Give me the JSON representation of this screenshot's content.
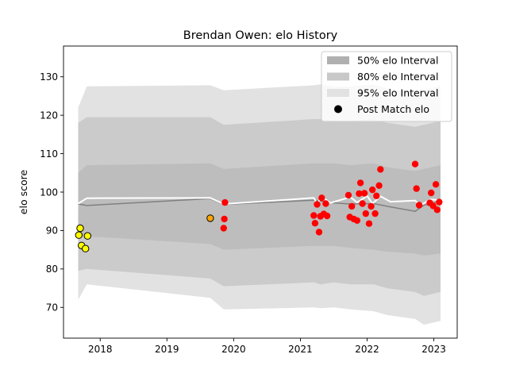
{
  "chart_data": {
    "type": "area",
    "title": "Brendan Owen: elo History",
    "xlabel": "",
    "ylabel": "elo score",
    "xlim": [
      2017.45,
      2023.35
    ],
    "ylim": [
      62,
      138
    ],
    "xticks": [
      {
        "value": 2018,
        "label": "2018"
      },
      {
        "value": 2019,
        "label": "2019"
      },
      {
        "value": 2020,
        "label": "2020"
      },
      {
        "value": 2021,
        "label": "2021"
      },
      {
        "value": 2022,
        "label": "2022"
      },
      {
        "value": 2023,
        "label": "2023"
      }
    ],
    "yticks": [
      {
        "value": 70,
        "label": "70"
      },
      {
        "value": 80,
        "label": "80"
      },
      {
        "value": 90,
        "label": "90"
      },
      {
        "value": 100,
        "label": "100"
      },
      {
        "value": 110,
        "label": "110"
      },
      {
        "value": 120,
        "label": "120"
      },
      {
        "value": 130,
        "label": "130"
      }
    ],
    "legend": {
      "position": "top-right",
      "entries": [
        {
          "label": "50% elo Interval",
          "kind": "patch",
          "color": "#b0b0b0"
        },
        {
          "label": "80% elo Interval",
          "kind": "patch",
          "color": "#c8c8c8"
        },
        {
          "label": "95% elo Interval",
          "kind": "patch",
          "color": "#e2e2e2"
        },
        {
          "label": "Post Match elo",
          "kind": "marker",
          "color": "#000000"
        }
      ]
    },
    "colors": {
      "band95": "#e2e2e2",
      "band80": "#cbcbcb",
      "band50": "#bdbdbd",
      "mean_line": "#808080",
      "white_line": "#ffffff",
      "points_red": "#ff0000",
      "points_yellow": "#ffff00",
      "points_orange": "#ffa500"
    },
    "mean": [
      {
        "x": 2017.67,
        "y": 96.9
      },
      {
        "x": 2017.8,
        "y": 96.5
      },
      {
        "x": 2019.65,
        "y": 98.3
      },
      {
        "x": 2019.85,
        "y": 96.8
      },
      {
        "x": 2021.2,
        "y": 97.9
      },
      {
        "x": 2021.3,
        "y": 97.7
      },
      {
        "x": 2021.5,
        "y": 97.2
      },
      {
        "x": 2021.75,
        "y": 96.9
      },
      {
        "x": 2022.1,
        "y": 97.0
      },
      {
        "x": 2022.3,
        "y": 96.3
      },
      {
        "x": 2022.72,
        "y": 95.0
      },
      {
        "x": 2022.85,
        "y": 96.6
      },
      {
        "x": 2023.1,
        "y": 97.6
      }
    ],
    "white_line": [
      {
        "x": 2017.67,
        "y": 97.0
      },
      {
        "x": 2017.8,
        "y": 98.4
      },
      {
        "x": 2019.65,
        "y": 98.5
      },
      {
        "x": 2019.85,
        "y": 96.9
      },
      {
        "x": 2021.2,
        "y": 98.5
      },
      {
        "x": 2021.25,
        "y": 97.0
      },
      {
        "x": 2021.32,
        "y": 98.8
      },
      {
        "x": 2021.45,
        "y": 97.2
      },
      {
        "x": 2021.75,
        "y": 98.7
      },
      {
        "x": 2021.85,
        "y": 97.3
      },
      {
        "x": 2022.0,
        "y": 99.0
      },
      {
        "x": 2022.08,
        "y": 97.0
      },
      {
        "x": 2022.2,
        "y": 98.9
      },
      {
        "x": 2022.35,
        "y": 97.5
      },
      {
        "x": 2022.72,
        "y": 97.8
      },
      {
        "x": 2022.8,
        "y": 96.6
      },
      {
        "x": 2022.95,
        "y": 98.1
      },
      {
        "x": 2023.1,
        "y": 97.9
      }
    ],
    "band95": {
      "x": [
        2017.67,
        2017.8,
        2019.65,
        2019.85,
        2021.2,
        2021.3,
        2021.5,
        2021.75,
        2022.1,
        2022.3,
        2022.72,
        2022.85,
        2023.1
      ],
      "lower": [
        72.0,
        76.0,
        72.5,
        69.5,
        70.0,
        69.8,
        70.0,
        69.5,
        69.0,
        68.0,
        67.0,
        65.5,
        66.5
      ],
      "upper": [
        122.0,
        127.5,
        127.8,
        126.5,
        127.8,
        128.0,
        127.5,
        127.5,
        128.0,
        127.0,
        126.0,
        126.5,
        127.8
      ]
    },
    "band80": {
      "x": [
        2017.67,
        2017.8,
        2019.65,
        2019.85,
        2021.2,
        2021.3,
        2021.5,
        2021.75,
        2022.1,
        2022.3,
        2022.72,
        2022.85,
        2023.1
      ],
      "lower": [
        79.5,
        80.0,
        77.5,
        75.5,
        76.5,
        76.0,
        76.5,
        76.0,
        76.0,
        75.0,
        74.0,
        73.0,
        74.0
      ],
      "upper": [
        118.0,
        119.5,
        119.5,
        117.5,
        119.0,
        119.0,
        118.5,
        118.5,
        119.0,
        118.0,
        117.0,
        117.5,
        118.5
      ]
    },
    "band50": {
      "x": [
        2017.67,
        2017.8,
        2019.65,
        2019.85,
        2021.2,
        2021.3,
        2021.5,
        2021.75,
        2022.1,
        2022.3,
        2022.72,
        2022.85,
        2023.1
      ],
      "lower": [
        88.5,
        88.5,
        86.5,
        85.0,
        86.0,
        86.0,
        86.0,
        85.5,
        85.0,
        84.5,
        84.0,
        83.5,
        84.0
      ],
      "upper": [
        105.0,
        107.0,
        107.5,
        106.0,
        107.5,
        107.5,
        107.5,
        107.0,
        107.5,
        106.5,
        105.5,
        106.0,
        107.0
      ]
    },
    "points": [
      {
        "x": 2017.68,
        "y": 88.8,
        "color": "yellow"
      },
      {
        "x": 2017.7,
        "y": 90.6,
        "color": "yellow"
      },
      {
        "x": 2017.72,
        "y": 86.1,
        "color": "yellow"
      },
      {
        "x": 2017.78,
        "y": 85.3,
        "color": "yellow"
      },
      {
        "x": 2017.81,
        "y": 88.6,
        "color": "yellow"
      },
      {
        "x": 2019.65,
        "y": 93.2,
        "color": "orange"
      },
      {
        "x": 2019.85,
        "y": 90.6,
        "color": "red"
      },
      {
        "x": 2019.86,
        "y": 93.0,
        "color": "red"
      },
      {
        "x": 2019.87,
        "y": 97.3,
        "color": "red"
      },
      {
        "x": 2021.2,
        "y": 93.9,
        "color": "red"
      },
      {
        "x": 2021.22,
        "y": 91.9,
        "color": "red"
      },
      {
        "x": 2021.25,
        "y": 96.8,
        "color": "red"
      },
      {
        "x": 2021.28,
        "y": 89.6,
        "color": "red"
      },
      {
        "x": 2021.3,
        "y": 93.7,
        "color": "red"
      },
      {
        "x": 2021.32,
        "y": 98.5,
        "color": "red"
      },
      {
        "x": 2021.35,
        "y": 94.3,
        "color": "red"
      },
      {
        "x": 2021.38,
        "y": 97.0,
        "color": "red"
      },
      {
        "x": 2021.4,
        "y": 93.8,
        "color": "red"
      },
      {
        "x": 2021.72,
        "y": 99.2,
        "color": "red"
      },
      {
        "x": 2021.74,
        "y": 93.5,
        "color": "red"
      },
      {
        "x": 2021.77,
        "y": 96.3,
        "color": "red"
      },
      {
        "x": 2021.8,
        "y": 93.0,
        "color": "red"
      },
      {
        "x": 2021.85,
        "y": 92.6,
        "color": "red"
      },
      {
        "x": 2021.88,
        "y": 99.6,
        "color": "red"
      },
      {
        "x": 2021.9,
        "y": 102.4,
        "color": "red"
      },
      {
        "x": 2021.93,
        "y": 97.0,
        "color": "red"
      },
      {
        "x": 2021.96,
        "y": 99.7,
        "color": "red"
      },
      {
        "x": 2021.98,
        "y": 94.4,
        "color": "red"
      },
      {
        "x": 2022.03,
        "y": 91.8,
        "color": "red"
      },
      {
        "x": 2022.06,
        "y": 96.3,
        "color": "red"
      },
      {
        "x": 2022.08,
        "y": 100.6,
        "color": "red"
      },
      {
        "x": 2022.12,
        "y": 94.4,
        "color": "red"
      },
      {
        "x": 2022.14,
        "y": 99.0,
        "color": "red"
      },
      {
        "x": 2022.18,
        "y": 101.7,
        "color": "red"
      },
      {
        "x": 2022.2,
        "y": 105.9,
        "color": "red"
      },
      {
        "x": 2022.72,
        "y": 107.3,
        "color": "red"
      },
      {
        "x": 2022.74,
        "y": 100.9,
        "color": "red"
      },
      {
        "x": 2022.78,
        "y": 96.6,
        "color": "red"
      },
      {
        "x": 2022.94,
        "y": 97.2,
        "color": "red"
      },
      {
        "x": 2022.96,
        "y": 99.8,
        "color": "red"
      },
      {
        "x": 2022.99,
        "y": 96.4,
        "color": "red"
      },
      {
        "x": 2023.03,
        "y": 102.0,
        "color": "red"
      },
      {
        "x": 2023.05,
        "y": 95.4,
        "color": "red"
      },
      {
        "x": 2023.08,
        "y": 97.4,
        "color": "red"
      }
    ]
  }
}
